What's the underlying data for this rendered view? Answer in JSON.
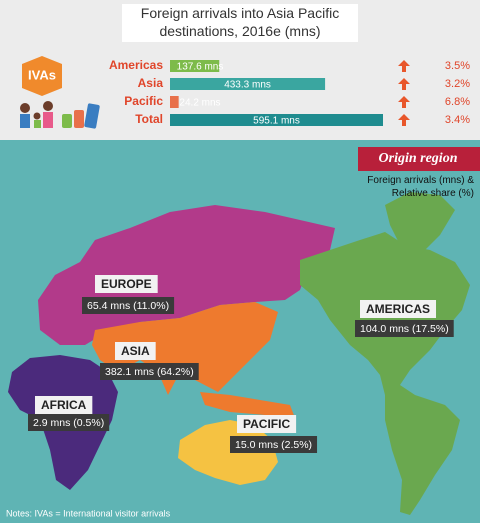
{
  "title": "Foreign arrivals into Asia Pacific destinations, 2016e (mns)",
  "badge": "IVAs",
  "summary": {
    "rows": [
      {
        "name": "Americas",
        "value": 137.6,
        "value_label": "137.6 mns",
        "growth": "3.5%",
        "color": "#7dbb4a"
      },
      {
        "name": "Asia",
        "value": 433.3,
        "value_label": "433.3 mns",
        "growth": "3.2%",
        "color": "#3aa6a0"
      },
      {
        "name": "Pacific",
        "value": 24.2,
        "value_label": "24.2 mns",
        "growth": "6.8%",
        "color": "#e8704a"
      },
      {
        "name": "Total",
        "value": 595.1,
        "value_label": "595.1 mns",
        "growth": "3.4%",
        "color": "#1f8c8f"
      }
    ]
  },
  "legend": {
    "title": "Origin region",
    "subtitle": "Foreign arrivals (mns) & Relative share (%)"
  },
  "regions": [
    {
      "name": "EUROPE",
      "label": "65.4 mns (11.0%)",
      "color": "#b23a8a"
    },
    {
      "name": "ASIA",
      "label": "382.1 mns (64.2%)",
      "color": "#ee7a2e"
    },
    {
      "name": "AFRICA",
      "label": "2.9 mns (0.5%)",
      "color": "#4b2a7c"
    },
    {
      "name": "PACIFIC",
      "label": "15.0 mns (2.5%)",
      "color": "#f5c242"
    },
    {
      "name": "AMERICAS",
      "label": "104.0 mns (17.5%)",
      "color": "#6aa84f"
    }
  ],
  "note": "Notes: IVAs = International visitor arrivals"
}
